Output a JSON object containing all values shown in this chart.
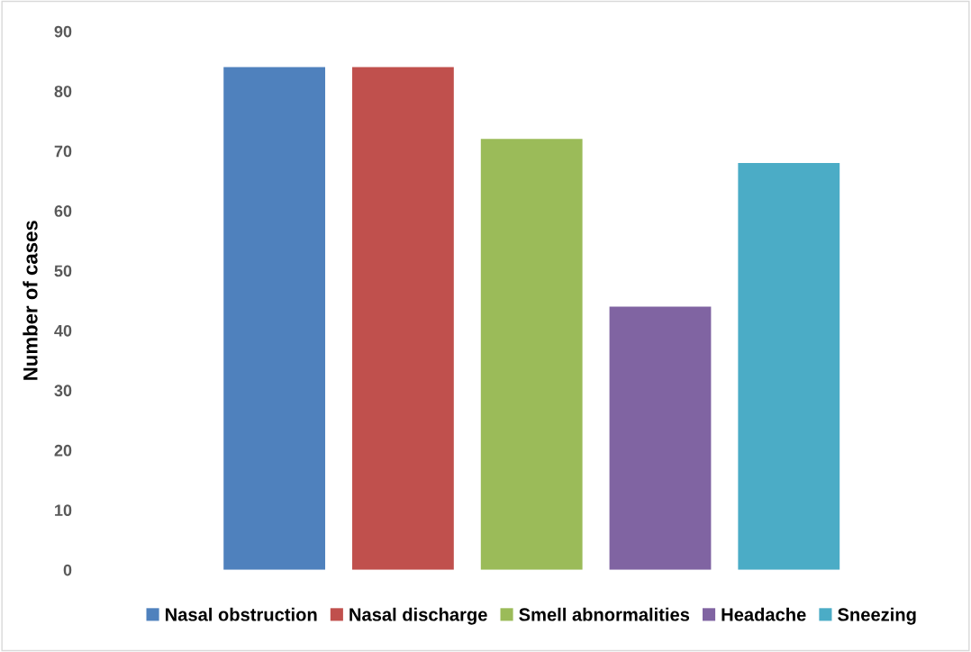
{
  "chart_data": {
    "type": "bar",
    "ylabel": "Number of cases",
    "categories": [
      null
    ],
    "series": [
      {
        "name": "Nasal obstruction",
        "color": "#4f81bd",
        "values": [
          84
        ]
      },
      {
        "name": "Nasal discharge",
        "color": "#c0504d",
        "values": [
          84
        ]
      },
      {
        "name": "Smell abnormalities",
        "color": "#9bbb59",
        "values": [
          72
        ]
      },
      {
        "name": "Headache",
        "color": "#8064a2",
        "values": [
          44
        ]
      },
      {
        "name": "Sneezing",
        "color": "#4bacc6",
        "values": [
          68
        ]
      }
    ],
    "ylim": [
      0,
      90
    ],
    "yticks": [
      0,
      10,
      20,
      30,
      40,
      50,
      60,
      70,
      80,
      90
    ],
    "grid": false,
    "legend": "bottom"
  }
}
